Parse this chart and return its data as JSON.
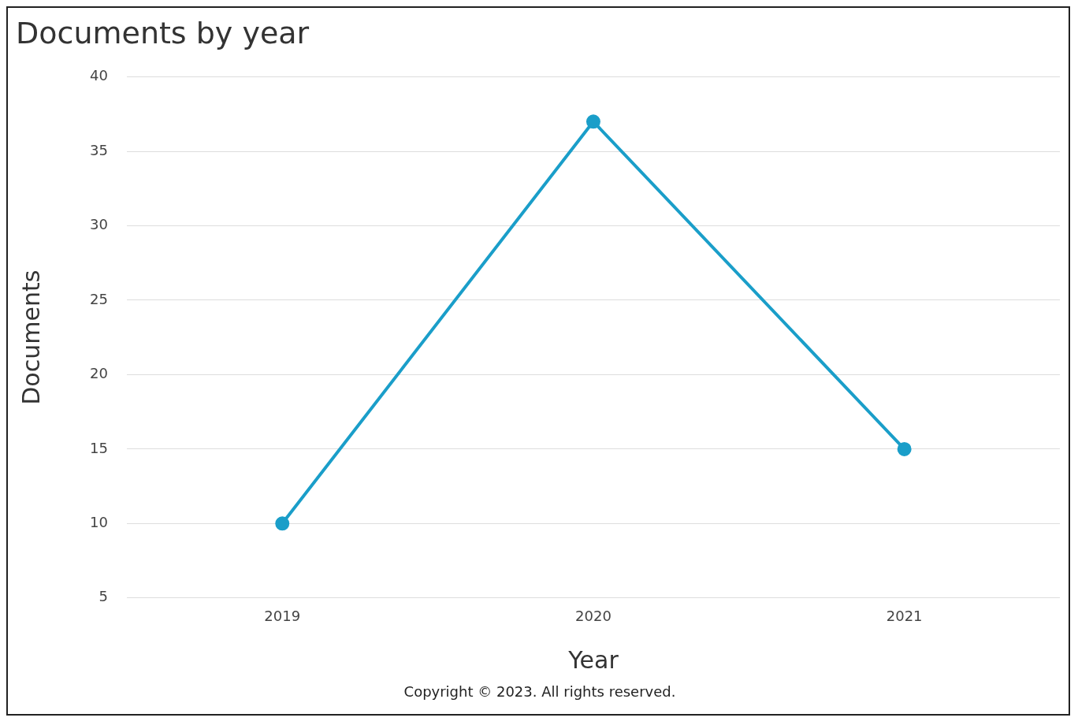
{
  "chart_data": {
    "type": "line",
    "title": "Documents by year",
    "xlabel": "Year",
    "ylabel": "Documents",
    "categories": [
      "2019",
      "2020",
      "2021"
    ],
    "series": [
      {
        "color": "#1a9ec9",
        "values": [
          10,
          37,
          15
        ]
      }
    ],
    "ylim": [
      5,
      40
    ],
    "yticks": [
      5,
      10,
      15,
      20,
      25,
      30,
      35,
      40
    ],
    "grid": "y",
    "marker": "circle",
    "line_style": "solid",
    "annotations": [
      "Copyright © 2023. All rights reserved."
    ]
  }
}
